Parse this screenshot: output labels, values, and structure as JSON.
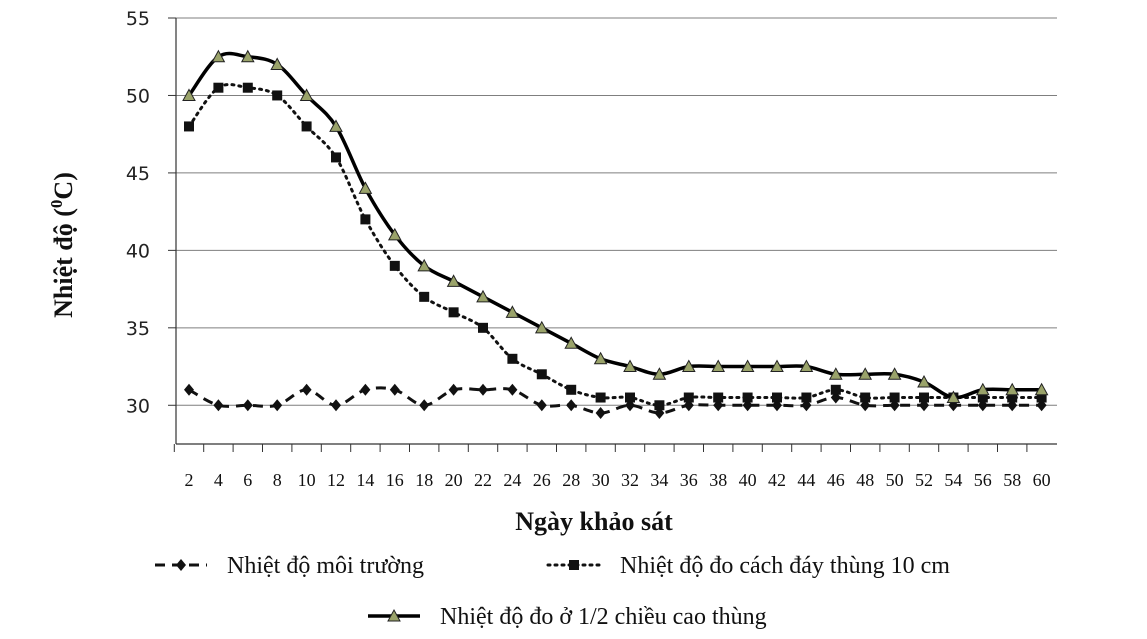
{
  "chart_data": {
    "type": "line",
    "xlabel": "Ngày khảo sát",
    "ylabel_main": "Nhiệt độ (",
    "ylabel_sup": "0",
    "ylabel_unit": "C)",
    "ylim": [
      27.5,
      55
    ],
    "yticks": [
      30,
      35,
      40,
      45,
      50,
      55
    ],
    "grid": true,
    "legend_position": "bottom",
    "x": [
      2,
      4,
      6,
      8,
      10,
      12,
      14,
      16,
      18,
      20,
      22,
      24,
      26,
      28,
      30,
      32,
      34,
      36,
      38,
      40,
      42,
      44,
      46,
      48,
      50,
      52,
      54,
      56,
      58,
      60
    ],
    "series": [
      {
        "name": "Nhiệt độ môi trường",
        "style": "dashed",
        "marker": "diamond",
        "color": "#111111",
        "values": [
          31,
          30,
          30,
          30,
          31,
          30,
          31,
          31,
          30,
          31,
          31,
          31,
          30,
          30,
          29.5,
          30,
          29.5,
          30,
          30,
          30,
          30,
          30,
          30.5,
          30,
          30,
          30,
          30,
          30,
          30,
          30
        ]
      },
      {
        "name": "Nhiệt độ đo cách đáy thùng 10 cm",
        "style": "dotted",
        "marker": "square",
        "color": "#111111",
        "values": [
          48,
          50.5,
          50.5,
          50,
          48,
          46,
          42,
          39,
          37,
          36,
          35,
          33,
          32,
          31,
          30.5,
          30.5,
          30,
          30.5,
          30.5,
          30.5,
          30.5,
          30.5,
          31,
          30.5,
          30.5,
          30.5,
          30.5,
          30.5,
          30.5,
          30.5
        ]
      },
      {
        "name": "Nhiệt độ đo ở 1/2 chiều cao thùng",
        "style": "solid",
        "marker": "triangle",
        "color": "#000000",
        "marker_fill": "#9aa36a",
        "values": [
          50,
          52.5,
          52.5,
          52,
          50,
          48,
          44,
          41,
          39,
          38,
          37,
          36,
          35,
          34,
          33,
          32.5,
          32,
          32.5,
          32.5,
          32.5,
          32.5,
          32.5,
          32,
          32,
          32,
          31.5,
          30.5,
          31,
          31,
          31
        ]
      }
    ]
  }
}
